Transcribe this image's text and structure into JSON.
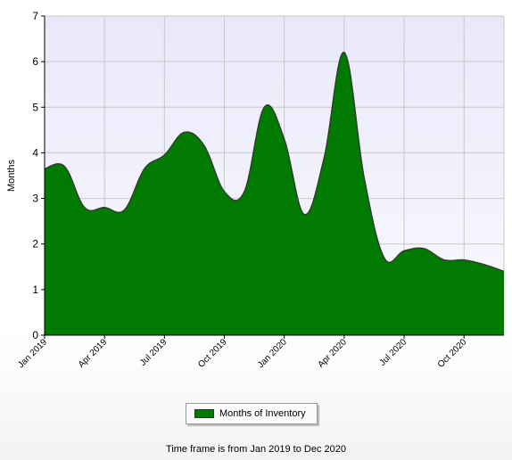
{
  "chart_data": {
    "type": "area",
    "ylabel": "Months",
    "xlabel": "",
    "ylim": [
      0,
      7
    ],
    "yticks": [
      0,
      1,
      2,
      3,
      4,
      5,
      6,
      7
    ],
    "x": [
      "Jan 2019",
      "Feb 2019",
      "Mar 2019",
      "Apr 2019",
      "May 2019",
      "Jun 2019",
      "Jul 2019",
      "Aug 2019",
      "Sep 2019",
      "Oct 2019",
      "Nov 2019",
      "Dec 2019",
      "Jan 2020",
      "Feb 2020",
      "Mar 2020",
      "Apr 2020",
      "May 2020",
      "Jun 2020",
      "Jul 2020",
      "Aug 2020",
      "Sep 2020",
      "Oct 2020",
      "Nov 2020",
      "Dec 2020"
    ],
    "xtick_labels": [
      "Jan 2019",
      "Apr 2019",
      "Jul 2019",
      "Oct 2019",
      "Jan 2020",
      "Apr 2020",
      "Jul 2020",
      "Oct 2020"
    ],
    "series": [
      {
        "name": "Months of Inventory",
        "values": [
          3.65,
          3.7,
          2.8,
          2.8,
          2.75,
          3.65,
          3.95,
          4.45,
          4.15,
          3.15,
          3.15,
          5.0,
          4.3,
          2.65,
          3.9,
          6.2,
          3.45,
          1.7,
          1.85,
          1.9,
          1.65,
          1.65,
          1.55,
          1.4
        ]
      }
    ],
    "grid": true,
    "legend_position": "bottom-center",
    "colors": {
      "fill": "#007a00",
      "stroke": "#2f3f2f",
      "plot_bg_top": "#e8e8fa",
      "plot_bg_bottom": "#fafaff",
      "grid": "#c8c8c8"
    }
  },
  "legend": {
    "label": "Months of Inventory"
  },
  "footer": {
    "text": "Time frame is from Jan 2019 to Dec 2020"
  }
}
